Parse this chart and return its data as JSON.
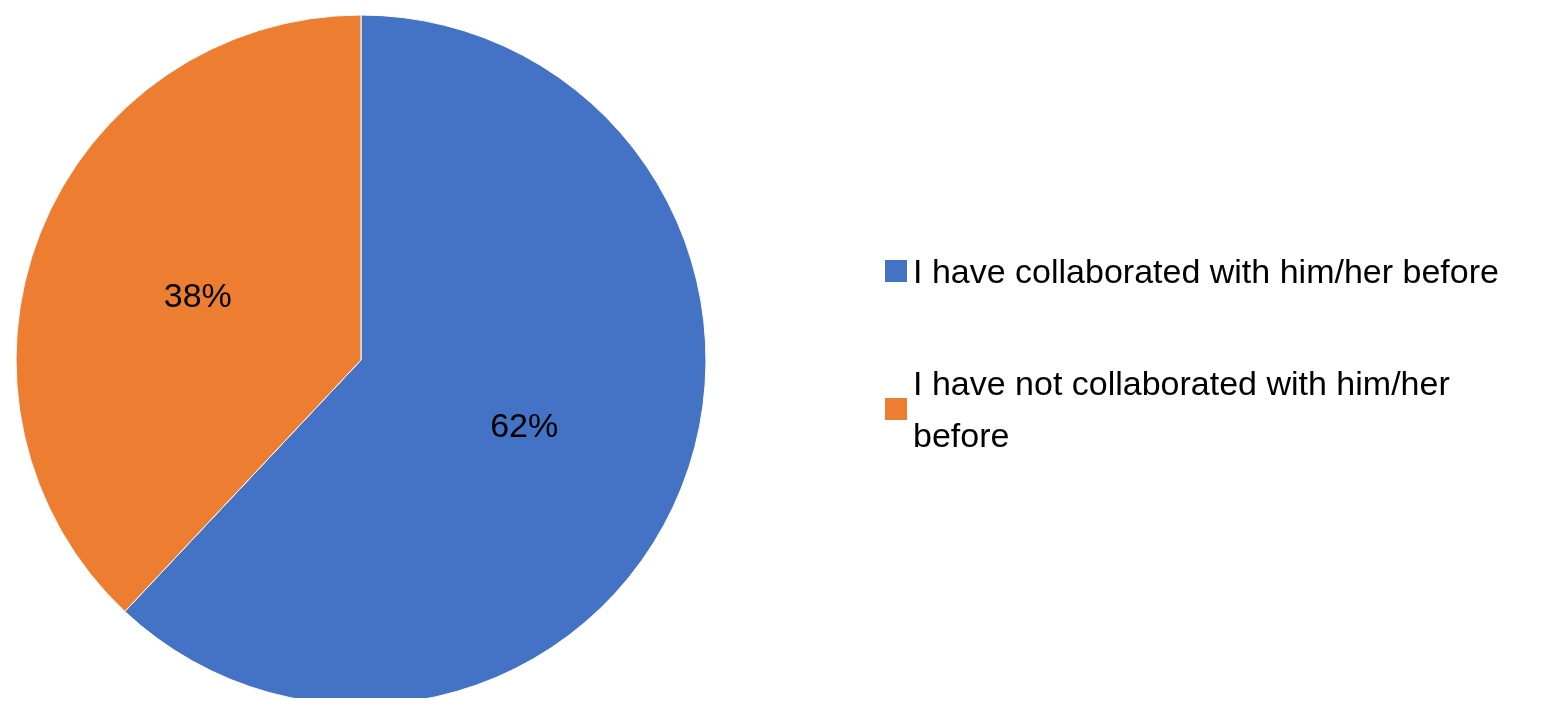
{
  "chart_data": {
    "type": "pie",
    "categories": [
      "I have collaborated with him/her before",
      "I have not collaborated with him/her before"
    ],
    "values": [
      62,
      38
    ],
    "colors": [
      "#4472c4",
      "#ed7d31"
    ],
    "value_labels": [
      "62%",
      "38%"
    ],
    "legend": "right"
  }
}
